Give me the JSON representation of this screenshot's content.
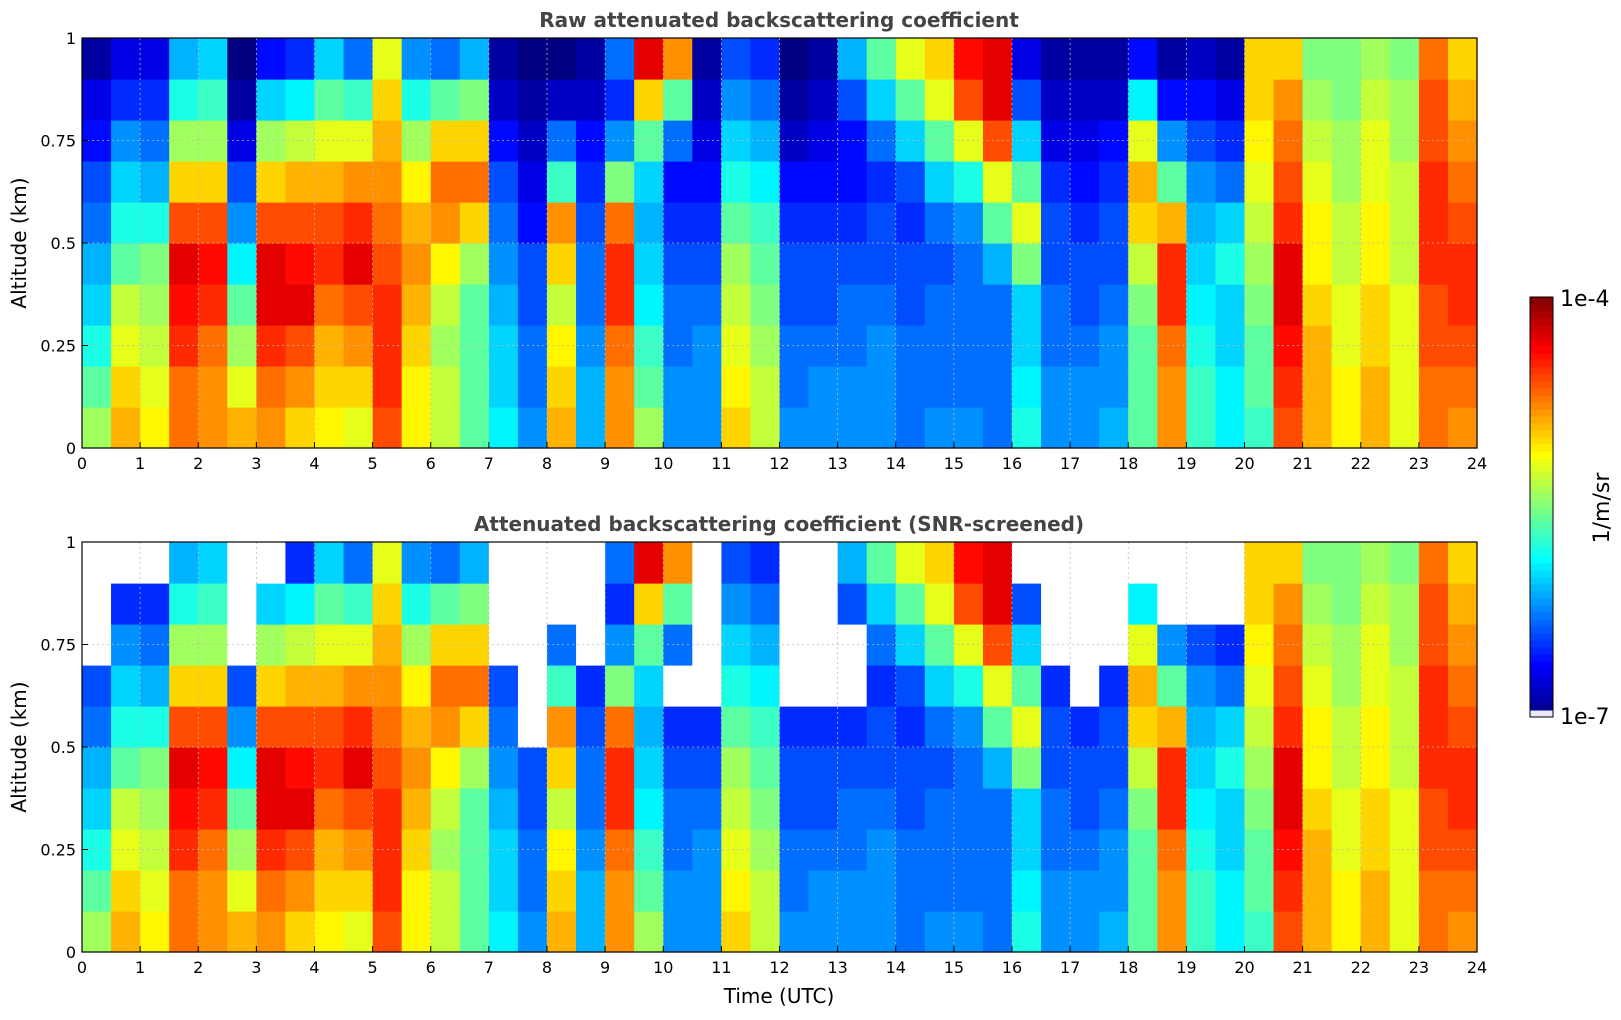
{
  "chart_data": [
    {
      "type": "heatmap",
      "title": "Raw attenuated backscattering coefficient",
      "xlabel": "",
      "ylabel": "Altitude (km)",
      "xlim": [
        0,
        24
      ],
      "ylim": [
        0,
        1
      ],
      "x_ticks": [
        "0",
        "1",
        "2",
        "3",
        "4",
        "5",
        "6",
        "7",
        "8",
        "9",
        "10",
        "11",
        "12",
        "13",
        "14",
        "15",
        "16",
        "17",
        "18",
        "19",
        "20",
        "21",
        "22",
        "23",
        "24"
      ],
      "y_ticks": [
        "0",
        "0.25",
        "0.5",
        "0.75",
        "1"
      ],
      "grid": true,
      "colorbar": "shared",
      "screened": false,
      "x": [
        0.0,
        0.5,
        1.0,
        1.5,
        2.0,
        2.5,
        3.0,
        3.5,
        4.0,
        4.5,
        5.0,
        5.5,
        6.0,
        6.5,
        7.0,
        7.5,
        8.0,
        8.5,
        9.0,
        9.5,
        10.0,
        10.5,
        11.0,
        11.5,
        12.0,
        12.5,
        13.0,
        13.5,
        14.0,
        14.5,
        15.0,
        15.5,
        16.0,
        16.5,
        17.0,
        17.5,
        18.0,
        18.5,
        19.0,
        19.5,
        20.0,
        20.5,
        21.0,
        21.5,
        22.0,
        22.5,
        23.0,
        23.5
      ],
      "y": [
        0.0,
        0.1,
        0.2,
        0.3,
        0.4,
        0.5,
        0.6,
        0.7,
        0.8,
        0.9
      ],
      "z_log10": [
        [
          -5.4,
          -5.6,
          -5.8,
          -6.0,
          -6.1,
          -6.3,
          -6.4,
          -6.6,
          -6.7,
          -6.9
        ],
        [
          -4.9,
          -5.0,
          -5.2,
          -5.3,
          -5.6,
          -5.8,
          -6.0,
          -6.2,
          -6.5,
          -6.7
        ],
        [
          -5.1,
          -5.2,
          -5.3,
          -5.4,
          -5.5,
          -5.8,
          -6.1,
          -6.3,
          -6.5,
          -6.7
        ],
        [
          -4.7,
          -4.7,
          -4.5,
          -4.4,
          -4.3,
          -4.6,
          -5.0,
          -5.4,
          -5.8,
          -6.1
        ],
        [
          -4.8,
          -4.8,
          -4.7,
          -4.5,
          -4.4,
          -4.6,
          -5.0,
          -5.4,
          -5.7,
          -6.0
        ],
        [
          -4.9,
          -5.2,
          -5.4,
          -5.6,
          -5.9,
          -6.2,
          -6.4,
          -6.7,
          -6.9,
          -7.1
        ],
        [
          -4.8,
          -4.7,
          -4.5,
          -4.3,
          -4.3,
          -4.6,
          -5.0,
          -5.4,
          -6.0,
          -6.6
        ],
        [
          -5.0,
          -4.8,
          -4.6,
          -4.3,
          -4.4,
          -4.6,
          -4.9,
          -5.3,
          -5.9,
          -6.5
        ],
        [
          -5.1,
          -5.0,
          -4.9,
          -4.7,
          -4.5,
          -4.6,
          -4.9,
          -5.2,
          -5.6,
          -6.0
        ],
        [
          -5.2,
          -5.0,
          -4.8,
          -4.6,
          -4.3,
          -4.5,
          -4.8,
          -5.2,
          -5.7,
          -6.3
        ],
        [
          -4.6,
          -4.5,
          -4.5,
          -4.5,
          -4.6,
          -4.7,
          -4.8,
          -4.9,
          -5.0,
          -5.2
        ],
        [
          -5.1,
          -5.1,
          -5.0,
          -4.9,
          -4.8,
          -4.9,
          -5.1,
          -5.4,
          -5.8,
          -6.2
        ],
        [
          -5.3,
          -5.3,
          -5.4,
          -5.3,
          -5.1,
          -4.8,
          -4.7,
          -5.0,
          -5.6,
          -6.3
        ],
        [
          -5.6,
          -5.6,
          -5.6,
          -5.6,
          -5.4,
          -5.0,
          -4.7,
          -5.0,
          -5.5,
          -6.1
        ],
        [
          -5.9,
          -6.0,
          -6.0,
          -6.1,
          -6.2,
          -6.3,
          -6.4,
          -6.6,
          -6.8,
          -6.9
        ],
        [
          -6.2,
          -6.3,
          -6.3,
          -6.4,
          -6.4,
          -6.6,
          -6.7,
          -6.8,
          -6.9,
          -7.0
        ],
        [
          -4.9,
          -5.0,
          -5.1,
          -5.3,
          -5.0,
          -4.8,
          -5.7,
          -6.3,
          -6.8,
          -7.0
        ],
        [
          -6.1,
          -6.1,
          -6.2,
          -6.3,
          -6.3,
          -6.4,
          -6.5,
          -6.6,
          -6.8,
          -6.9
        ],
        [
          -4.8,
          -4.8,
          -4.7,
          -4.5,
          -4.5,
          -4.7,
          -5.5,
          -6.2,
          -6.5,
          -6.3
        ],
        [
          -5.4,
          -5.6,
          -5.7,
          -5.9,
          -6.0,
          -6.1,
          -6.0,
          -5.6,
          -5.0,
          -4.3
        ],
        [
          -6.2,
          -6.2,
          -6.3,
          -6.3,
          -6.4,
          -6.5,
          -6.6,
          -6.3,
          -5.6,
          -4.8
        ],
        [
          -6.2,
          -6.2,
          -6.2,
          -6.3,
          -6.4,
          -6.5,
          -6.6,
          -6.7,
          -6.8,
          -6.9
        ],
        [
          -5.0,
          -5.1,
          -5.2,
          -5.3,
          -5.4,
          -5.6,
          -5.8,
          -6.0,
          -6.2,
          -6.4
        ],
        [
          -5.3,
          -5.3,
          -5.4,
          -5.5,
          -5.6,
          -5.7,
          -5.9,
          -6.1,
          -6.3,
          -6.5
        ],
        [
          -6.2,
          -6.3,
          -6.3,
          -6.4,
          -6.4,
          -6.5,
          -6.6,
          -6.8,
          -6.9,
          -7.0
        ],
        [
          -6.2,
          -6.2,
          -6.3,
          -6.4,
          -6.4,
          -6.5,
          -6.6,
          -6.7,
          -6.8,
          -6.9
        ],
        [
          -6.2,
          -6.2,
          -6.3,
          -6.3,
          -6.4,
          -6.5,
          -6.6,
          -6.6,
          -6.4,
          -6.1
        ],
        [
          -6.2,
          -6.2,
          -6.2,
          -6.3,
          -6.4,
          -6.4,
          -6.5,
          -6.3,
          -6.0,
          -5.6
        ],
        [
          -6.3,
          -6.3,
          -6.3,
          -6.4,
          -6.4,
          -6.5,
          -6.4,
          -6.0,
          -5.6,
          -5.2
        ],
        [
          -6.2,
          -6.3,
          -6.3,
          -6.3,
          -6.4,
          -6.3,
          -6.0,
          -5.6,
          -5.2,
          -5.0
        ],
        [
          -6.2,
          -6.3,
          -6.3,
          -6.3,
          -6.3,
          -6.2,
          -5.8,
          -5.2,
          -4.6,
          -4.4
        ],
        [
          -6.3,
          -6.3,
          -6.3,
          -6.3,
          -6.1,
          -5.6,
          -5.2,
          -4.6,
          -4.3,
          -4.3
        ],
        [
          -5.8,
          -5.9,
          -6.0,
          -6.0,
          -5.5,
          -5.2,
          -5.6,
          -6.0,
          -6.4,
          -6.7
        ],
        [
          -6.2,
          -6.2,
          -6.3,
          -6.3,
          -6.4,
          -6.4,
          -6.5,
          -6.7,
          -6.8,
          -6.9
        ],
        [
          -6.2,
          -6.2,
          -6.3,
          -6.4,
          -6.4,
          -6.5,
          -6.6,
          -6.7,
          -6.8,
          -6.9
        ],
        [
          -6.1,
          -6.2,
          -6.2,
          -6.3,
          -6.4,
          -6.4,
          -6.5,
          -6.6,
          -6.8,
          -6.9
        ],
        [
          -5.6,
          -5.6,
          -5.6,
          -5.5,
          -5.3,
          -5.0,
          -4.9,
          -5.2,
          -5.9,
          -6.6
        ],
        [
          -4.8,
          -4.8,
          -4.7,
          -4.5,
          -4.5,
          -4.9,
          -5.6,
          -6.2,
          -6.6,
          -6.9
        ],
        [
          -5.7,
          -5.7,
          -5.8,
          -5.9,
          -6.0,
          -6.1,
          -6.2,
          -6.4,
          -6.6,
          -6.8
        ],
        [
          -5.9,
          -5.9,
          -6.0,
          -6.0,
          -5.8,
          -6.0,
          -6.3,
          -6.5,
          -6.7,
          -6.9
        ],
        [
          -5.7,
          -5.6,
          -5.6,
          -5.5,
          -5.4,
          -5.3,
          -5.2,
          -5.1,
          -5.0,
          -5.0
        ],
        [
          -4.6,
          -4.5,
          -4.4,
          -4.3,
          -4.3,
          -4.5,
          -4.6,
          -4.7,
          -4.8,
          -5.0
        ],
        [
          -4.9,
          -4.9,
          -4.9,
          -5.0,
          -5.1,
          -5.1,
          -5.2,
          -5.3,
          -5.4,
          -5.5
        ],
        [
          -5.1,
          -5.1,
          -5.2,
          -5.2,
          -5.3,
          -5.3,
          -5.4,
          -5.4,
          -5.5,
          -5.5
        ],
        [
          -4.9,
          -4.9,
          -5.0,
          -5.0,
          -5.1,
          -5.1,
          -5.2,
          -5.2,
          -5.3,
          -5.4
        ],
        [
          -5.2,
          -5.2,
          -5.2,
          -5.2,
          -5.3,
          -5.3,
          -5.3,
          -5.4,
          -5.4,
          -5.5
        ],
        [
          -4.7,
          -4.7,
          -4.6,
          -4.6,
          -4.5,
          -4.5,
          -4.5,
          -4.6,
          -4.6,
          -4.7
        ],
        [
          -4.8,
          -4.7,
          -4.6,
          -4.5,
          -4.5,
          -4.6,
          -4.7,
          -4.8,
          -4.9,
          -5.0
        ]
      ]
    },
    {
      "type": "heatmap",
      "title": "Attenuated backscattering coefficient (SNR-screened)",
      "xlabel": "Time (UTC)",
      "ylabel": "Altitude (km)",
      "xlim": [
        0,
        24
      ],
      "ylim": [
        0,
        1
      ],
      "x_ticks": [
        "0",
        "1",
        "2",
        "3",
        "4",
        "5",
        "6",
        "7",
        "8",
        "9",
        "10",
        "11",
        "12",
        "13",
        "14",
        "15",
        "16",
        "17",
        "18",
        "19",
        "20",
        "21",
        "22",
        "23",
        "24"
      ],
      "y_ticks": [
        "0",
        "0.25",
        "0.5",
        "0.75",
        "1"
      ],
      "grid": true,
      "colorbar": "shared",
      "screened": true,
      "x": [
        0.0,
        0.5,
        1.0,
        1.5,
        2.0,
        2.5,
        3.0,
        3.5,
        4.0,
        4.5,
        5.0,
        5.5,
        6.0,
        6.5,
        7.0,
        7.5,
        8.0,
        8.5,
        9.0,
        9.5,
        10.0,
        10.5,
        11.0,
        11.5,
        12.0,
        12.5,
        13.0,
        13.5,
        14.0,
        14.5,
        15.0,
        15.5,
        16.0,
        16.5,
        17.0,
        17.5,
        18.0,
        18.5,
        19.0,
        19.5,
        20.0,
        20.5,
        21.0,
        21.5,
        22.0,
        22.5,
        23.0,
        23.5
      ],
      "y": [
        0.0,
        0.1,
        0.2,
        0.3,
        0.4,
        0.5,
        0.6,
        0.7,
        0.8,
        0.9
      ]
    }
  ],
  "colorbar": {
    "label": "1/m/sr",
    "max_label": "1e-4",
    "min_label": "1e-7",
    "log_min": -7,
    "log_max": -4,
    "colormap": "jet"
  }
}
